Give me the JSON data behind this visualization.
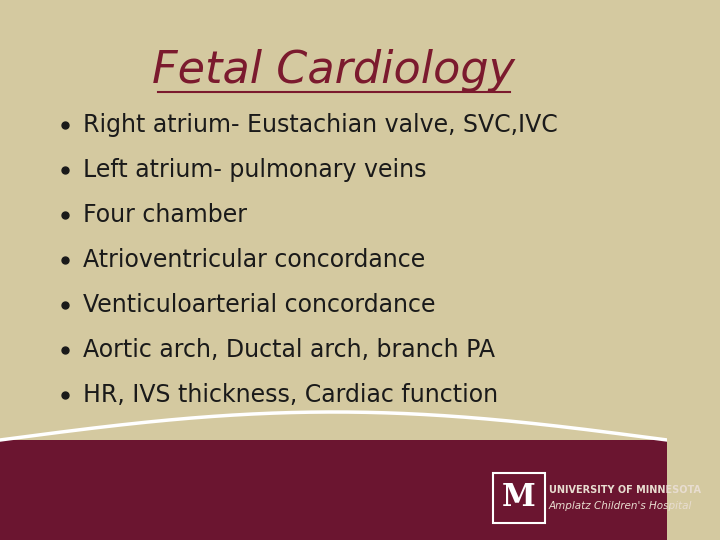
{
  "title": "Fetal Cardiology",
  "title_color": "#7B1A2E",
  "title_fontsize": 32,
  "title_font": "Georgia",
  "background_color": "#D4C9A0",
  "bullet_color": "#1a1a1a",
  "bullet_fontsize": 17,
  "bullet_font": "Georgia",
  "bullets": [
    "Right atrium- Eustachian valve, SVC,IVC",
    "Left atrium- pulmonary veins",
    "Four chamber",
    "Atrioventricular concordance",
    "Venticuloarterial concordance",
    "Aortic arch, Ductal arch, branch PA",
    "HR, IVS thickness, Cardiac function"
  ],
  "footer_bg_color": "#6B1530",
  "footer_text1": "UNIVERSITY OF MINNESOTA",
  "footer_text2": "Amplatz Children's Hospital",
  "footer_text_color": "#E8DDD0",
  "wave_color": "#FFFFFF"
}
